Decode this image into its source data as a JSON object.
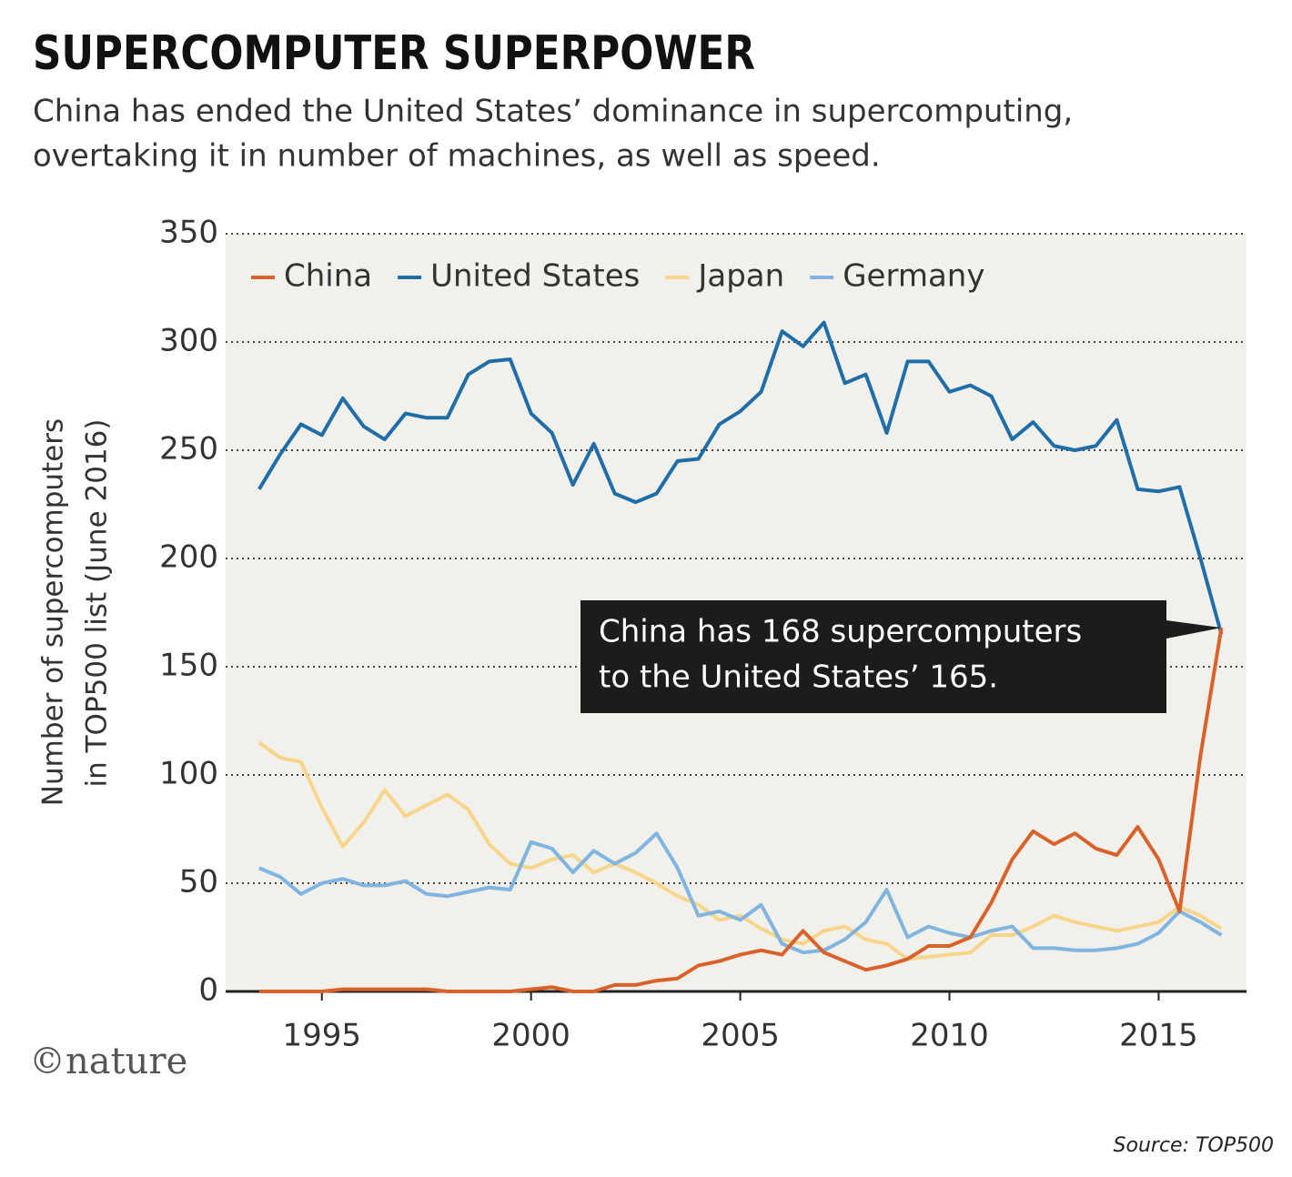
{
  "chart_data": {
    "type": "line",
    "title": "SUPERCOMPUTER SUPERPOWER",
    "subtitle": [
      "China has ended the United States’ dominance in supercomputing,",
      "overtaking it in number of machines, as well as speed."
    ],
    "ylabel": [
      "Number of supercomputers",
      "in TOP500 list (June 2016)"
    ],
    "annotation": [
      "China has 168 supercomputers",
      "to the United States’ 165."
    ],
    "credit": "©nature",
    "source": "Source: TOP500",
    "x": [
      1993.5,
      1994,
      1994.5,
      1995,
      1995.5,
      1996,
      1996.5,
      1997,
      1997.5,
      1998,
      1998.5,
      1999,
      1999.5,
      2000,
      2000.5,
      2001,
      2001.5,
      2002,
      2002.5,
      2003,
      2003.5,
      2004,
      2004.5,
      2005,
      2005.5,
      2006,
      2006.5,
      2007,
      2007.5,
      2008,
      2008.5,
      2009,
      2009.5,
      2010,
      2010.5,
      2011,
      2011.5,
      2012,
      2012.5,
      2013,
      2013.5,
      2014,
      2014.5,
      2015,
      2015.5,
      2016,
      2016.5
    ],
    "xlim": [
      1992.7,
      2017.1
    ],
    "xticks": [
      1995,
      2000,
      2005,
      2010,
      2015
    ],
    "ylim": [
      0,
      350
    ],
    "yticks": [
      0,
      50,
      100,
      150,
      200,
      250,
      300,
      350
    ],
    "grid": true,
    "legend": "top-left",
    "series": [
      {
        "name": "China",
        "color": "#d9622b",
        "values": [
          0,
          0,
          0,
          0,
          1,
          1,
          1,
          1,
          1,
          0,
          0,
          0,
          0,
          1,
          2,
          0,
          0,
          3,
          3,
          5,
          6,
          12,
          14,
          17,
          19,
          17,
          28,
          18,
          14,
          10,
          12,
          15,
          21,
          21,
          25,
          41,
          61,
          74,
          68,
          73,
          66,
          63,
          76,
          61,
          37,
          109,
          168
        ]
      },
      {
        "name": "United States",
        "color": "#1f6ea8",
        "values": [
          232,
          248,
          262,
          257,
          274,
          261,
          255,
          267,
          265,
          265,
          285,
          291,
          292,
          267,
          258,
          234,
          253,
          230,
          226,
          230,
          245,
          246,
          262,
          268,
          277,
          305,
          298,
          309,
          281,
          285,
          258,
          291,
          291,
          277,
          280,
          275,
          255,
          263,
          252,
          250,
          252,
          264,
          232,
          231,
          233,
          200,
          165
        ]
      },
      {
        "name": "Japan",
        "color": "#f7d58a",
        "values": [
          115,
          108,
          106,
          85,
          67,
          78,
          93,
          81,
          86,
          91,
          84,
          68,
          59,
          57,
          61,
          63,
          55,
          59,
          55,
          50,
          44,
          40,
          33,
          35,
          29,
          24,
          22,
          28,
          30,
          24,
          22,
          15,
          16,
          17,
          18,
          26,
          26,
          30,
          35,
          32,
          30,
          28,
          30,
          32,
          39,
          35,
          29
        ]
      },
      {
        "name": "Germany",
        "color": "#7fb5e0",
        "values": [
          57,
          53,
          45,
          50,
          52,
          49,
          49,
          51,
          45,
          44,
          46,
          48,
          47,
          69,
          66,
          55,
          65,
          59,
          64,
          73,
          57,
          35,
          37,
          33,
          40,
          22,
          18,
          19,
          24,
          32,
          47,
          25,
          30,
          27,
          25,
          28,
          30,
          20,
          20,
          19,
          19,
          20,
          22,
          27,
          37,
          32,
          26
        ]
      }
    ]
  }
}
